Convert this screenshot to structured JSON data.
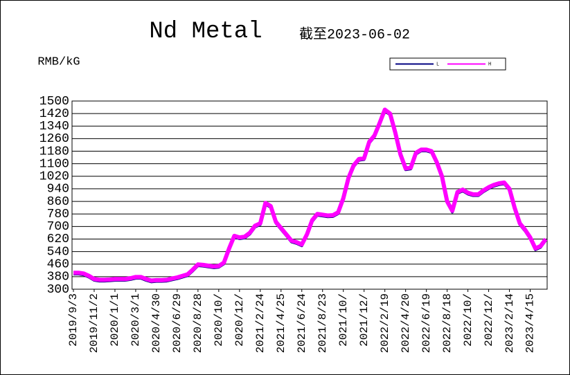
{
  "chart_data": {
    "type": "line",
    "title": "Nd Metal",
    "subtitle": "截至2023-06-02",
    "y_label": "RMB/kG",
    "categories": [
      "2019/9/3",
      null,
      null,
      null,
      "2019/11/2",
      null,
      null,
      null,
      "2020/1/1",
      null,
      null,
      null,
      "2020/3/1",
      null,
      null,
      null,
      "2020/4/30",
      null,
      null,
      null,
      "2020/6/29",
      null,
      null,
      null,
      "2020/8/28",
      null,
      null,
      null,
      "2020/10/",
      null,
      null,
      null,
      "2020/12/",
      null,
      null,
      null,
      "2021/2/24",
      null,
      null,
      null,
      "2021/4/25",
      null,
      null,
      null,
      "2021/6/24",
      null,
      null,
      null,
      "2021/8/23",
      null,
      null,
      null,
      "2021/10/",
      null,
      null,
      null,
      "2021/12/",
      null,
      null,
      null,
      "2022/2/19",
      null,
      null,
      null,
      "2022/4/20",
      null,
      null,
      null,
      "2022/6/19",
      null,
      null,
      null,
      "2022/8/18",
      null,
      null,
      null,
      "2022/10/",
      null,
      null,
      null,
      "2022/12/",
      null,
      null,
      null,
      "2023/2/14",
      null,
      null,
      null,
      "2023/4/15",
      null,
      null,
      null
    ],
    "series": [
      {
        "name": "L",
        "color": "#000080",
        "values": [
          397,
          397,
          392,
          377,
          357,
          352,
          352,
          354,
          357,
          357,
          357,
          362,
          370,
          370,
          357,
          347,
          350,
          350,
          352,
          360,
          367,
          377,
          387,
          417,
          450,
          447,
          442,
          437,
          440,
          462,
          552,
          632,
          622,
          627,
          652,
          697,
          712,
          842,
          822,
          722,
          682,
          642,
          602,
          592,
          577,
          642,
          732,
          772,
          767,
          762,
          764,
          782,
          872,
          1002,
          1082,
          1122,
          1127,
          1232,
          1272,
          1352,
          1437,
          1412,
          1292,
          1152,
          1062,
          1067,
          1162,
          1182,
          1182,
          1172,
          1102,
          1012,
          852,
          792,
          912,
          927,
          907,
          897,
          897,
          922,
          942,
          957,
          967,
          972,
          932,
          812,
          712,
          672,
          622,
          552,
          567,
          612
        ]
      },
      {
        "name": "H",
        "color": "#ff00ff",
        "values": [
          405,
          405,
          400,
          385,
          365,
          360,
          360,
          362,
          365,
          365,
          365,
          370,
          378,
          378,
          365,
          355,
          358,
          358,
          360,
          368,
          375,
          385,
          395,
          425,
          458,
          455,
          450,
          445,
          448,
          470,
          560,
          640,
          630,
          635,
          660,
          705,
          720,
          850,
          830,
          730,
          690,
          650,
          610,
          600,
          585,
          650,
          740,
          780,
          775,
          770,
          772,
          790,
          880,
          1010,
          1090,
          1130,
          1135,
          1240,
          1280,
          1360,
          1445,
          1420,
          1300,
          1160,
          1070,
          1075,
          1170,
          1190,
          1190,
          1180,
          1110,
          1020,
          860,
          800,
          920,
          935,
          915,
          905,
          905,
          930,
          950,
          965,
          975,
          980,
          940,
          820,
          720,
          680,
          630,
          560,
          575,
          620
        ]
      }
    ],
    "ylim": [
      300,
      1500
    ],
    "yticks": [
      300,
      380,
      460,
      540,
      620,
      700,
      780,
      860,
      940,
      1020,
      1100,
      1180,
      1260,
      1340,
      1420,
      1500
    ],
    "grid": true,
    "legend": "top-right"
  }
}
